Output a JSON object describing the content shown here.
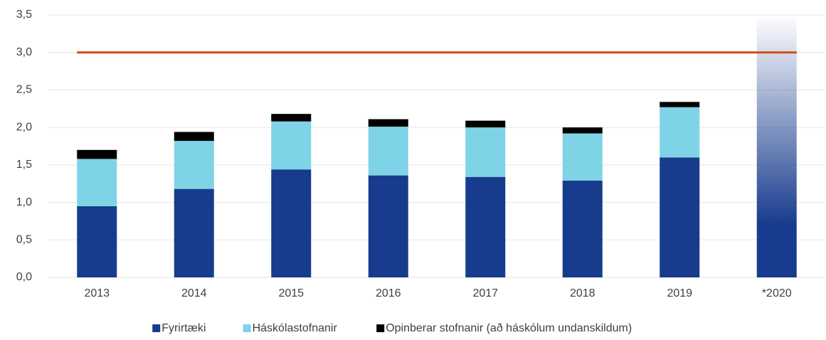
{
  "chart_data": {
    "type": "bar",
    "stacked": true,
    "categories": [
      "2013",
      "2014",
      "2015",
      "2016",
      "2017",
      "2018",
      "2019",
      "*2020"
    ],
    "series": [
      {
        "name": "Fyrirtæki",
        "color": "#173b8d",
        "values": [
          0.95,
          1.18,
          1.44,
          1.36,
          1.34,
          1.29,
          1.6,
          null
        ]
      },
      {
        "name": "Háskólastofnanir",
        "color": "#7fd3e6",
        "values": [
          0.63,
          0.64,
          0.64,
          0.65,
          0.66,
          0.63,
          0.67,
          null
        ]
      },
      {
        "name": "Opinberar stofnanir (að háskólum undanskildum)",
        "color": "#000000",
        "values": [
          0.12,
          0.12,
          0.1,
          0.1,
          0.09,
          0.08,
          0.07,
          null
        ]
      },
      {
        "color": "#173b8d",
        "gradient": true,
        "values": [
          null,
          null,
          null,
          null,
          null,
          null,
          null,
          3.5
        ]
      }
    ],
    "target_line": {
      "value": 3.0,
      "color": "#d24b14"
    },
    "ylim": [
      0,
      3.5
    ],
    "yticks": [
      {
        "value": 0,
        "label": "0,0"
      },
      {
        "value": 0.5,
        "label": "0,5"
      },
      {
        "value": 1,
        "label": "1,0"
      },
      {
        "value": 1.5,
        "label": "1,5"
      },
      {
        "value": 2,
        "label": "2,0"
      },
      {
        "value": 2.5,
        "label": "2,5"
      },
      {
        "value": 3,
        "label": "3,0"
      },
      {
        "value": 3.5,
        "label": "3,5"
      }
    ],
    "grid": true,
    "legend": "bottom"
  }
}
